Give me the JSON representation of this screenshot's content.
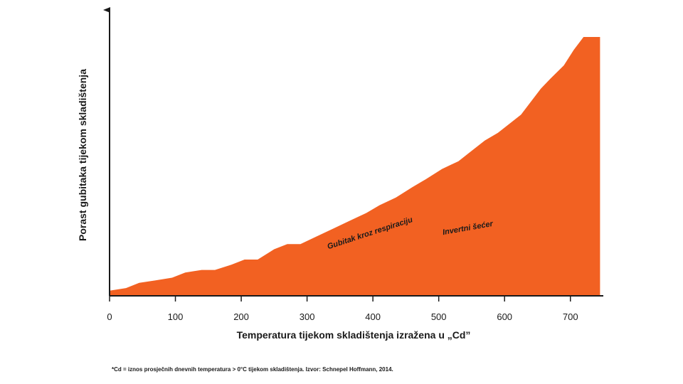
{
  "colors": {
    "area": "#f26122",
    "axis": "#1a1a1a",
    "background": "#ffffff"
  },
  "chart_data": {
    "type": "area",
    "title": "",
    "xlabel": "Temperatura tijekom skladištenja izražena u „Cd”",
    "ylabel": "Porast gubitaka tijekom skladištenja",
    "xlim": [
      0,
      750
    ],
    "ylim": [
      0,
      100
    ],
    "x_ticks": [
      0,
      100,
      200,
      300,
      400,
      500,
      600,
      700
    ],
    "grid": false,
    "legend": "none",
    "series": [
      {
        "x": [
          0,
          25,
          45,
          70,
          95,
          115,
          140,
          160,
          185,
          205,
          225,
          250,
          270,
          290,
          315,
          340,
          365,
          390,
          410,
          435,
          460,
          480,
          505,
          530,
          545,
          570,
          590,
          610,
          625,
          640,
          655,
          670,
          690,
          705,
          720,
          730,
          745
        ],
        "y": [
          2,
          3,
          5,
          6,
          7,
          9,
          10,
          10,
          12,
          14,
          14,
          18,
          20,
          20,
          23,
          26,
          29,
          32,
          35,
          38,
          42,
          45,
          49,
          52,
          55,
          60,
          63,
          67,
          70,
          75,
          80,
          84,
          89,
          95,
          100,
          100,
          100
        ]
      }
    ],
    "annotations": [
      "Gubitak kroz respiraciju",
      "Invertni šećer"
    ]
  },
  "footnote": "*Cd = iznos prosječnih dnevnih temperatura > 0°C tijekom skladištenja. Izvor: Schnepel Hoffmann, 2014."
}
